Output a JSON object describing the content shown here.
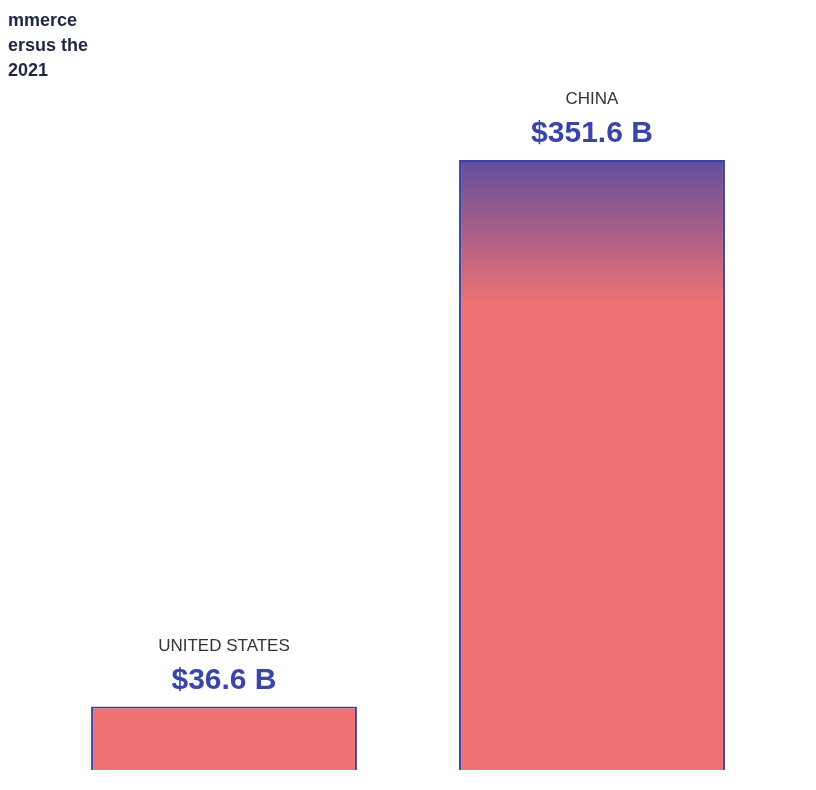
{
  "chart_data": {
    "type": "bar",
    "title": [
      "mmerce",
      "ersus the",
      "2021"
    ],
    "categories": [
      "UNITED STATES",
      "CHINA"
    ],
    "values": [
      36.6,
      351.6
    ],
    "value_labels": [
      "$36.6 B",
      "$351.6 B"
    ],
    "color": "#f07272",
    "ylim": [
      0,
      351.6
    ],
    "grid": false,
    "data_labels": true,
    "tick_labels": false
  }
}
